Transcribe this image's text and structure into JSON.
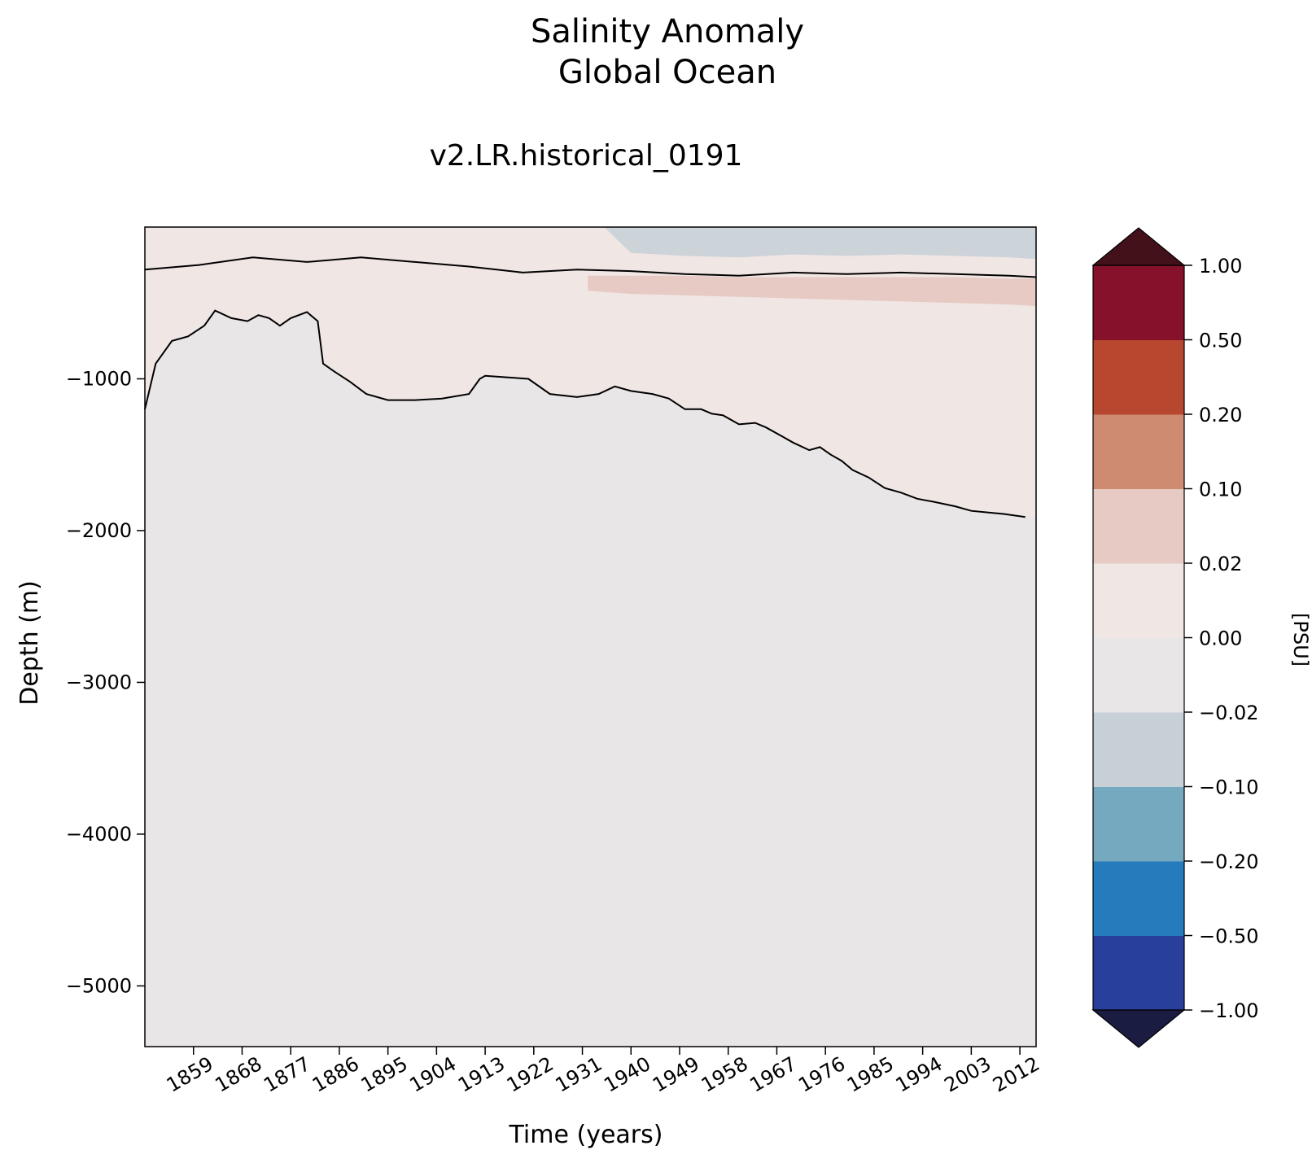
{
  "chart_data": {
    "type": "heatmap",
    "title": "Salinity Anomaly",
    "title_line2": "Global Ocean",
    "subtitle": "v2.LR.historical_0191",
    "xlabel": "Time (years)",
    "ylabel": "Depth (m)",
    "xlim": [
      1850,
      2015
    ],
    "ylim": [
      -5400,
      0
    ],
    "x_ticks": [
      1859,
      1868,
      1877,
      1886,
      1895,
      1904,
      1913,
      1922,
      1931,
      1940,
      1949,
      1958,
      1967,
      1976,
      1985,
      1994,
      2003,
      2012
    ],
    "y_ticks": [
      -1000,
      -2000,
      -3000,
      -4000,
      -5000
    ],
    "y_tick_labels": [
      "−1000",
      "−2000",
      "−3000",
      "−4000",
      "−5000"
    ],
    "colorbar": {
      "label": "[PSU]",
      "levels": [
        -1.0,
        -0.5,
        -0.2,
        -0.1,
        -0.02,
        0.0,
        0.02,
        0.1,
        0.2,
        0.5,
        1.0
      ],
      "tick_labels": [
        "−1.00",
        "−0.50",
        "−0.20",
        "−0.10",
        "−0.02",
        "0.00",
        "0.02",
        "0.10",
        "0.20",
        "0.50",
        "1.00"
      ],
      "colors": [
        "#283f9b",
        "#267bbc",
        "#75a9c0",
        "#c8d0d7",
        "#e9e6e7",
        "#f0e6e4",
        "#e6cac3",
        "#cf8a72",
        "#b7472f",
        "#86112b"
      ],
      "under_color": "#1b1c42",
      "over_color": "#43111a",
      "extend": "both"
    },
    "background_color": "#e9e6e7",
    "zero_contour": [
      [
        1850,
        -1200
      ],
      [
        1852,
        -900
      ],
      [
        1855,
        -750
      ],
      [
        1858,
        -720
      ],
      [
        1861,
        -650
      ],
      [
        1863,
        -550
      ],
      [
        1866,
        -600
      ],
      [
        1869,
        -620
      ],
      [
        1871,
        -580
      ],
      [
        1873,
        -600
      ],
      [
        1875,
        -650
      ],
      [
        1877,
        -600
      ],
      [
        1880,
        -560
      ],
      [
        1882,
        -620
      ],
      [
        1883,
        -900
      ],
      [
        1885,
        -950
      ],
      [
        1888,
        -1020
      ],
      [
        1891,
        -1100
      ],
      [
        1895,
        -1140
      ],
      [
        1900,
        -1140
      ],
      [
        1905,
        -1130
      ],
      [
        1910,
        -1100
      ],
      [
        1912,
        -1000
      ],
      [
        1913,
        -980
      ],
      [
        1917,
        -990
      ],
      [
        1921,
        -1000
      ],
      [
        1925,
        -1100
      ],
      [
        1930,
        -1120
      ],
      [
        1934,
        -1100
      ],
      [
        1937,
        -1050
      ],
      [
        1940,
        -1080
      ],
      [
        1944,
        -1100
      ],
      [
        1947,
        -1130
      ],
      [
        1950,
        -1200
      ],
      [
        1953,
        -1200
      ],
      [
        1955,
        -1230
      ],
      [
        1957,
        -1240
      ],
      [
        1960,
        -1300
      ],
      [
        1963,
        -1290
      ],
      [
        1965,
        -1320
      ],
      [
        1968,
        -1380
      ],
      [
        1970,
        -1420
      ],
      [
        1973,
        -1470
      ],
      [
        1975,
        -1450
      ],
      [
        1977,
        -1500
      ],
      [
        1979,
        -1540
      ],
      [
        1981,
        -1600
      ],
      [
        1984,
        -1650
      ],
      [
        1987,
        -1720
      ],
      [
        1990,
        -1750
      ],
      [
        1993,
        -1790
      ],
      [
        1996,
        -1810
      ],
      [
        2000,
        -1840
      ],
      [
        2003,
        -1870
      ],
      [
        2006,
        -1880
      ],
      [
        2009,
        -1890
      ],
      [
        2013,
        -1910
      ]
    ],
    "shallow_zero_contour": [
      [
        1850,
        -280
      ],
      [
        1860,
        -250
      ],
      [
        1870,
        -200
      ],
      [
        1880,
        -230
      ],
      [
        1890,
        -200
      ],
      [
        1900,
        -230
      ],
      [
        1910,
        -260
      ],
      [
        1920,
        -300
      ],
      [
        1930,
        -280
      ],
      [
        1940,
        -290
      ],
      [
        1950,
        -310
      ],
      [
        1960,
        -320
      ],
      [
        1970,
        -300
      ],
      [
        1980,
        -310
      ],
      [
        1990,
        -300
      ],
      [
        2000,
        -310
      ],
      [
        2010,
        -320
      ],
      [
        2015,
        -330
      ]
    ],
    "positive_band_020": [
      [
        1932,
        -320,
        -420
      ],
      [
        1940,
        -320,
        -440
      ],
      [
        1950,
        -320,
        -450
      ],
      [
        1960,
        -330,
        -460
      ],
      [
        1970,
        -330,
        -470
      ],
      [
        1980,
        -330,
        -480
      ],
      [
        1990,
        -330,
        -490
      ],
      [
        2000,
        -330,
        -500
      ],
      [
        2010,
        -340,
        -510
      ],
      [
        2015,
        -340,
        -520
      ]
    ],
    "negative_near_surface": "top ~300 m slightly negative (-0.02 to -0.10) from ~1935 onward"
  }
}
